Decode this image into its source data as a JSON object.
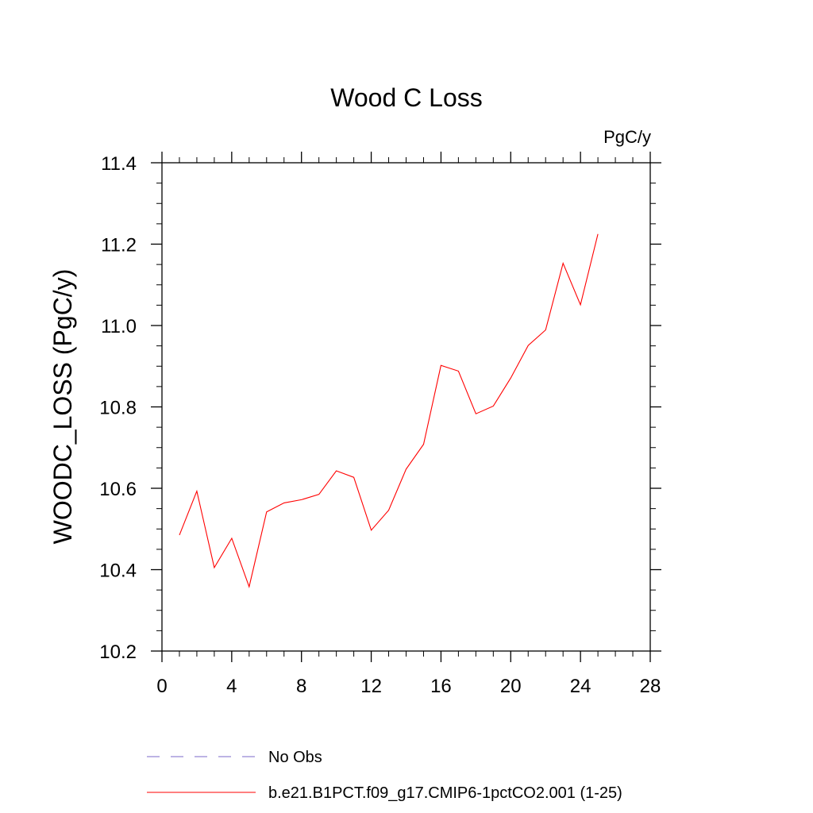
{
  "chart_data": {
    "type": "line",
    "title": "Wood C Loss",
    "units": "PgC/y",
    "xlabel": "",
    "ylabel": "WOODC_LOSS  (PgC/y)",
    "xlim": [
      0,
      28
    ],
    "ylim": [
      10.2,
      11.4
    ],
    "x_ticks": [
      0,
      4,
      8,
      12,
      16,
      20,
      24,
      28
    ],
    "x_tick_labels": [
      "0",
      "4",
      "8",
      "12",
      "16",
      "20",
      "24",
      "28"
    ],
    "y_ticks": [
      10.2,
      10.4,
      10.6,
      10.8,
      11.0,
      11.2,
      11.4
    ],
    "y_tick_labels": [
      "10.2",
      "10.4",
      "10.6",
      "10.8",
      "11.0",
      "11.2",
      "11.4"
    ],
    "grid": false,
    "legend_position": "bottom",
    "series": [
      {
        "name": "No Obs",
        "color": "#7b68c8",
        "dash": "dashed",
        "x": [],
        "y": []
      },
      {
        "name": "b.e21.B1PCT.f09_g17.CMIP6-1pctCO2.001 (1-25)",
        "color": "#ff0000",
        "dash": "solid",
        "x": [
          1,
          2,
          3,
          4,
          5,
          6,
          7,
          8,
          9,
          10,
          11,
          12,
          13,
          14,
          15,
          16,
          17,
          18,
          19,
          20,
          21,
          22,
          23,
          24,
          25
        ],
        "y": [
          10.485,
          10.593,
          10.405,
          10.477,
          10.358,
          10.542,
          10.564,
          10.572,
          10.585,
          10.643,
          10.627,
          10.497,
          10.546,
          10.647,
          10.708,
          10.902,
          10.888,
          10.783,
          10.802,
          10.871,
          10.951,
          10.989,
          11.153,
          11.051,
          11.225
        ]
      }
    ]
  }
}
